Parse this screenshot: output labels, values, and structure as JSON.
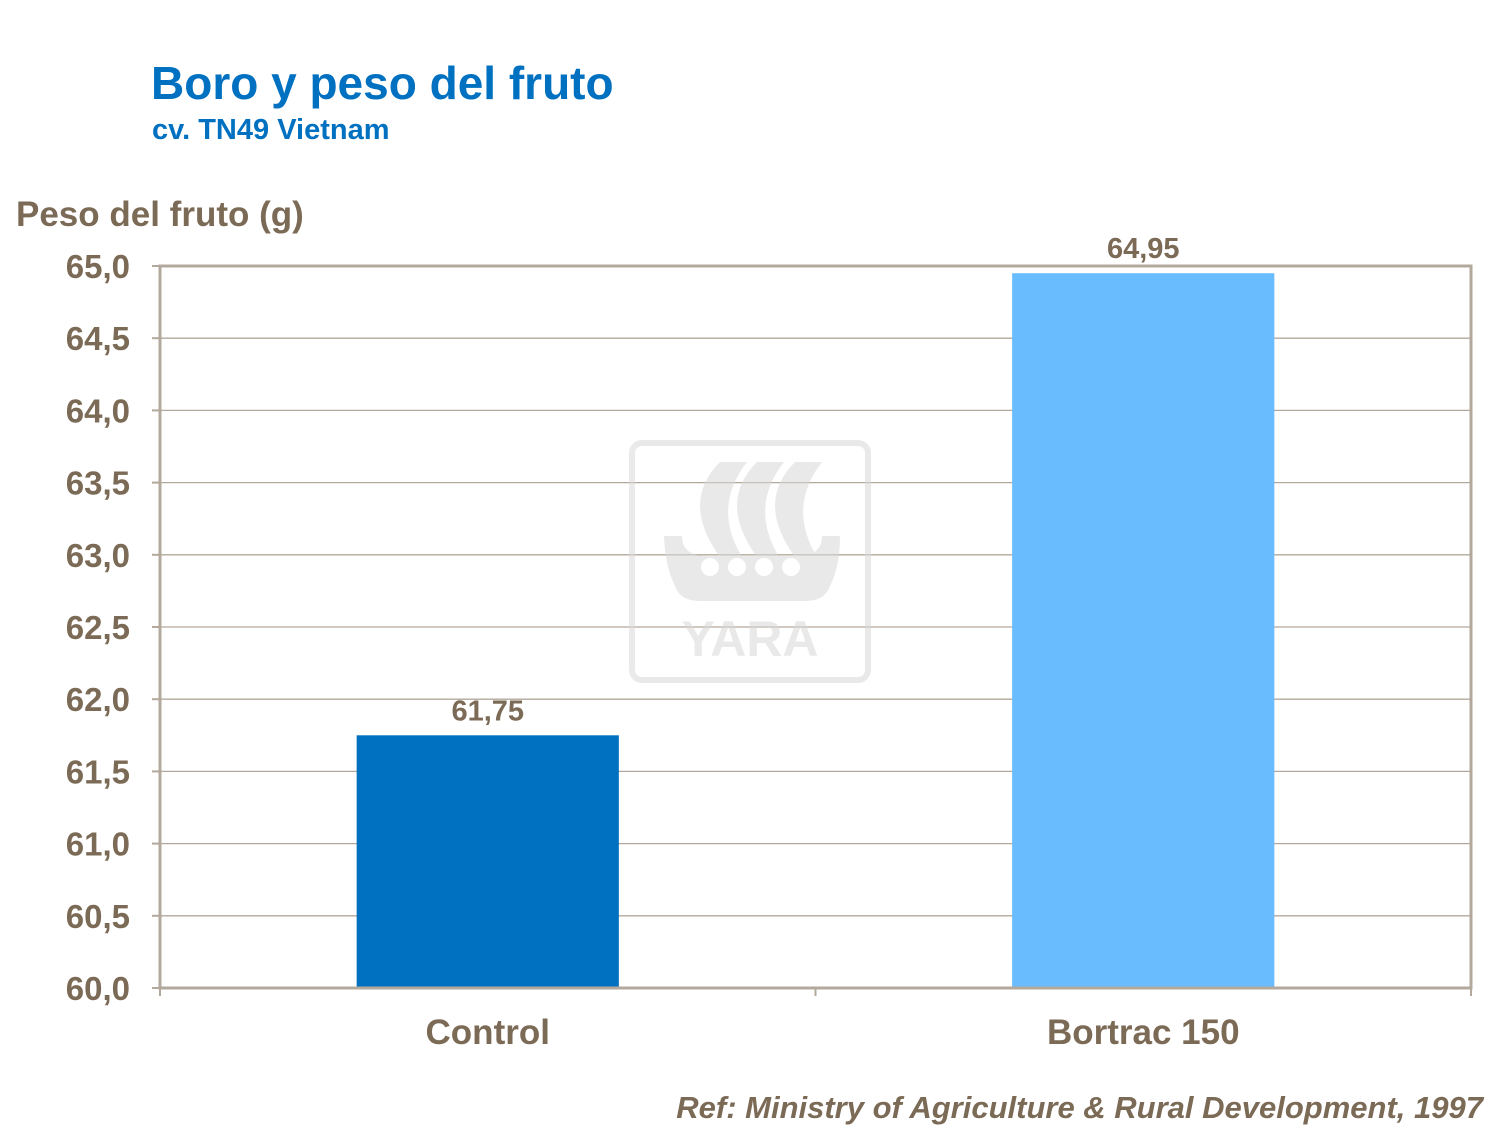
{
  "chart_data": {
    "type": "bar",
    "title": "Boro y peso del fruto",
    "subtitle": "cv. TN49 Vietnam",
    "xlabel": "",
    "ylabel": "Peso del fruto (g)",
    "categories": [
      "Control",
      "Bortrac 150"
    ],
    "values": [
      61.75,
      64.95
    ],
    "value_labels": [
      "61,75",
      "64,95"
    ],
    "bar_colors": [
      "#0070c0",
      "#69bdff"
    ],
    "ylim": [
      60,
      65
    ],
    "yticks": [
      "60,0",
      "60,5",
      "61,0",
      "61,5",
      "62,0",
      "62,5",
      "63,0",
      "63,5",
      "64,0",
      "64,5",
      "65,0"
    ],
    "grid": true,
    "legend": "none"
  },
  "watermark": {
    "logo_text": "YARA"
  },
  "footer": {
    "reference": "Ref: Ministry of Agriculture & Rural Development, 1997"
  }
}
